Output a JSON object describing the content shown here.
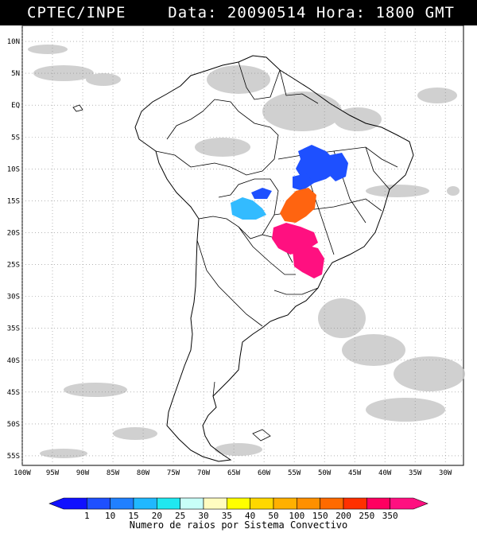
{
  "header": {
    "source": "CPTEC/INPE",
    "datetime": "Data: 20090514 Hora: 1800 GMT"
  },
  "map": {
    "lat_labels": [
      "10N",
      "5N",
      "EQ",
      "5S",
      "10S",
      "15S",
      "20S",
      "25S",
      "30S",
      "35S",
      "40S",
      "45S",
      "50S",
      "55S"
    ],
    "lat_values": [
      10,
      5,
      0,
      -5,
      -10,
      -15,
      -20,
      -25,
      -30,
      -35,
      -40,
      -45,
      -50,
      -55
    ],
    "lon_labels": [
      "100W",
      "95W",
      "90W",
      "85W",
      "80W",
      "75W",
      "70W",
      "65W",
      "60W",
      "55W",
      "50W",
      "45W",
      "40W",
      "35W",
      "30W"
    ],
    "lon_values": [
      -100,
      -95,
      -90,
      -85,
      -80,
      -75,
      -70,
      -65,
      -60,
      -55,
      -50,
      -45,
      -40,
      -35,
      -30
    ],
    "lat_range": [
      -56.5,
      12.5
    ],
    "lon_range": [
      -100,
      -27
    ],
    "colors": {
      "land_border": "#000000",
      "gridline": "#888888",
      "cloud": "#c8c8c8"
    },
    "convective_systems": [
      {
        "name": "central-brazil-north-1",
        "rays": "10-15",
        "color": "#1e50ff"
      },
      {
        "name": "central-brazil-north-2",
        "rays": "10-15",
        "color": "#1e50ff"
      },
      {
        "name": "northeast-brazil",
        "rays": "10-15",
        "color": "#1e50ff"
      },
      {
        "name": "mato-grosso-small",
        "rays": "10-15",
        "color": "#1e50ff"
      },
      {
        "name": "bolivia-east",
        "rays": "15-20",
        "color": "#33bbff"
      },
      {
        "name": "goias",
        "rays": "200-250",
        "color": "#ff6410"
      },
      {
        "name": "mato-grosso-sul",
        "rays": ">350",
        "color": "#ff1080"
      },
      {
        "name": "parana",
        "rays": ">350",
        "color": "#ff1080"
      }
    ]
  },
  "colorbar": {
    "labels": [
      "1",
      "10",
      "15",
      "20",
      "25",
      "30",
      "35",
      "40",
      "50",
      "100",
      "150",
      "200",
      "250",
      "350"
    ],
    "colors": [
      "#1010ff",
      "#1e50ff",
      "#2080ff",
      "#20b8ff",
      "#20e8f0",
      "#c8fff8",
      "#fffcc0",
      "#ffff00",
      "#ffd800",
      "#ffb000",
      "#ff9000",
      "#ff6a00",
      "#ff3000",
      "#ff0060",
      "#ff1080"
    ],
    "caption": "Numero de raios por Sistema Convectivo"
  }
}
